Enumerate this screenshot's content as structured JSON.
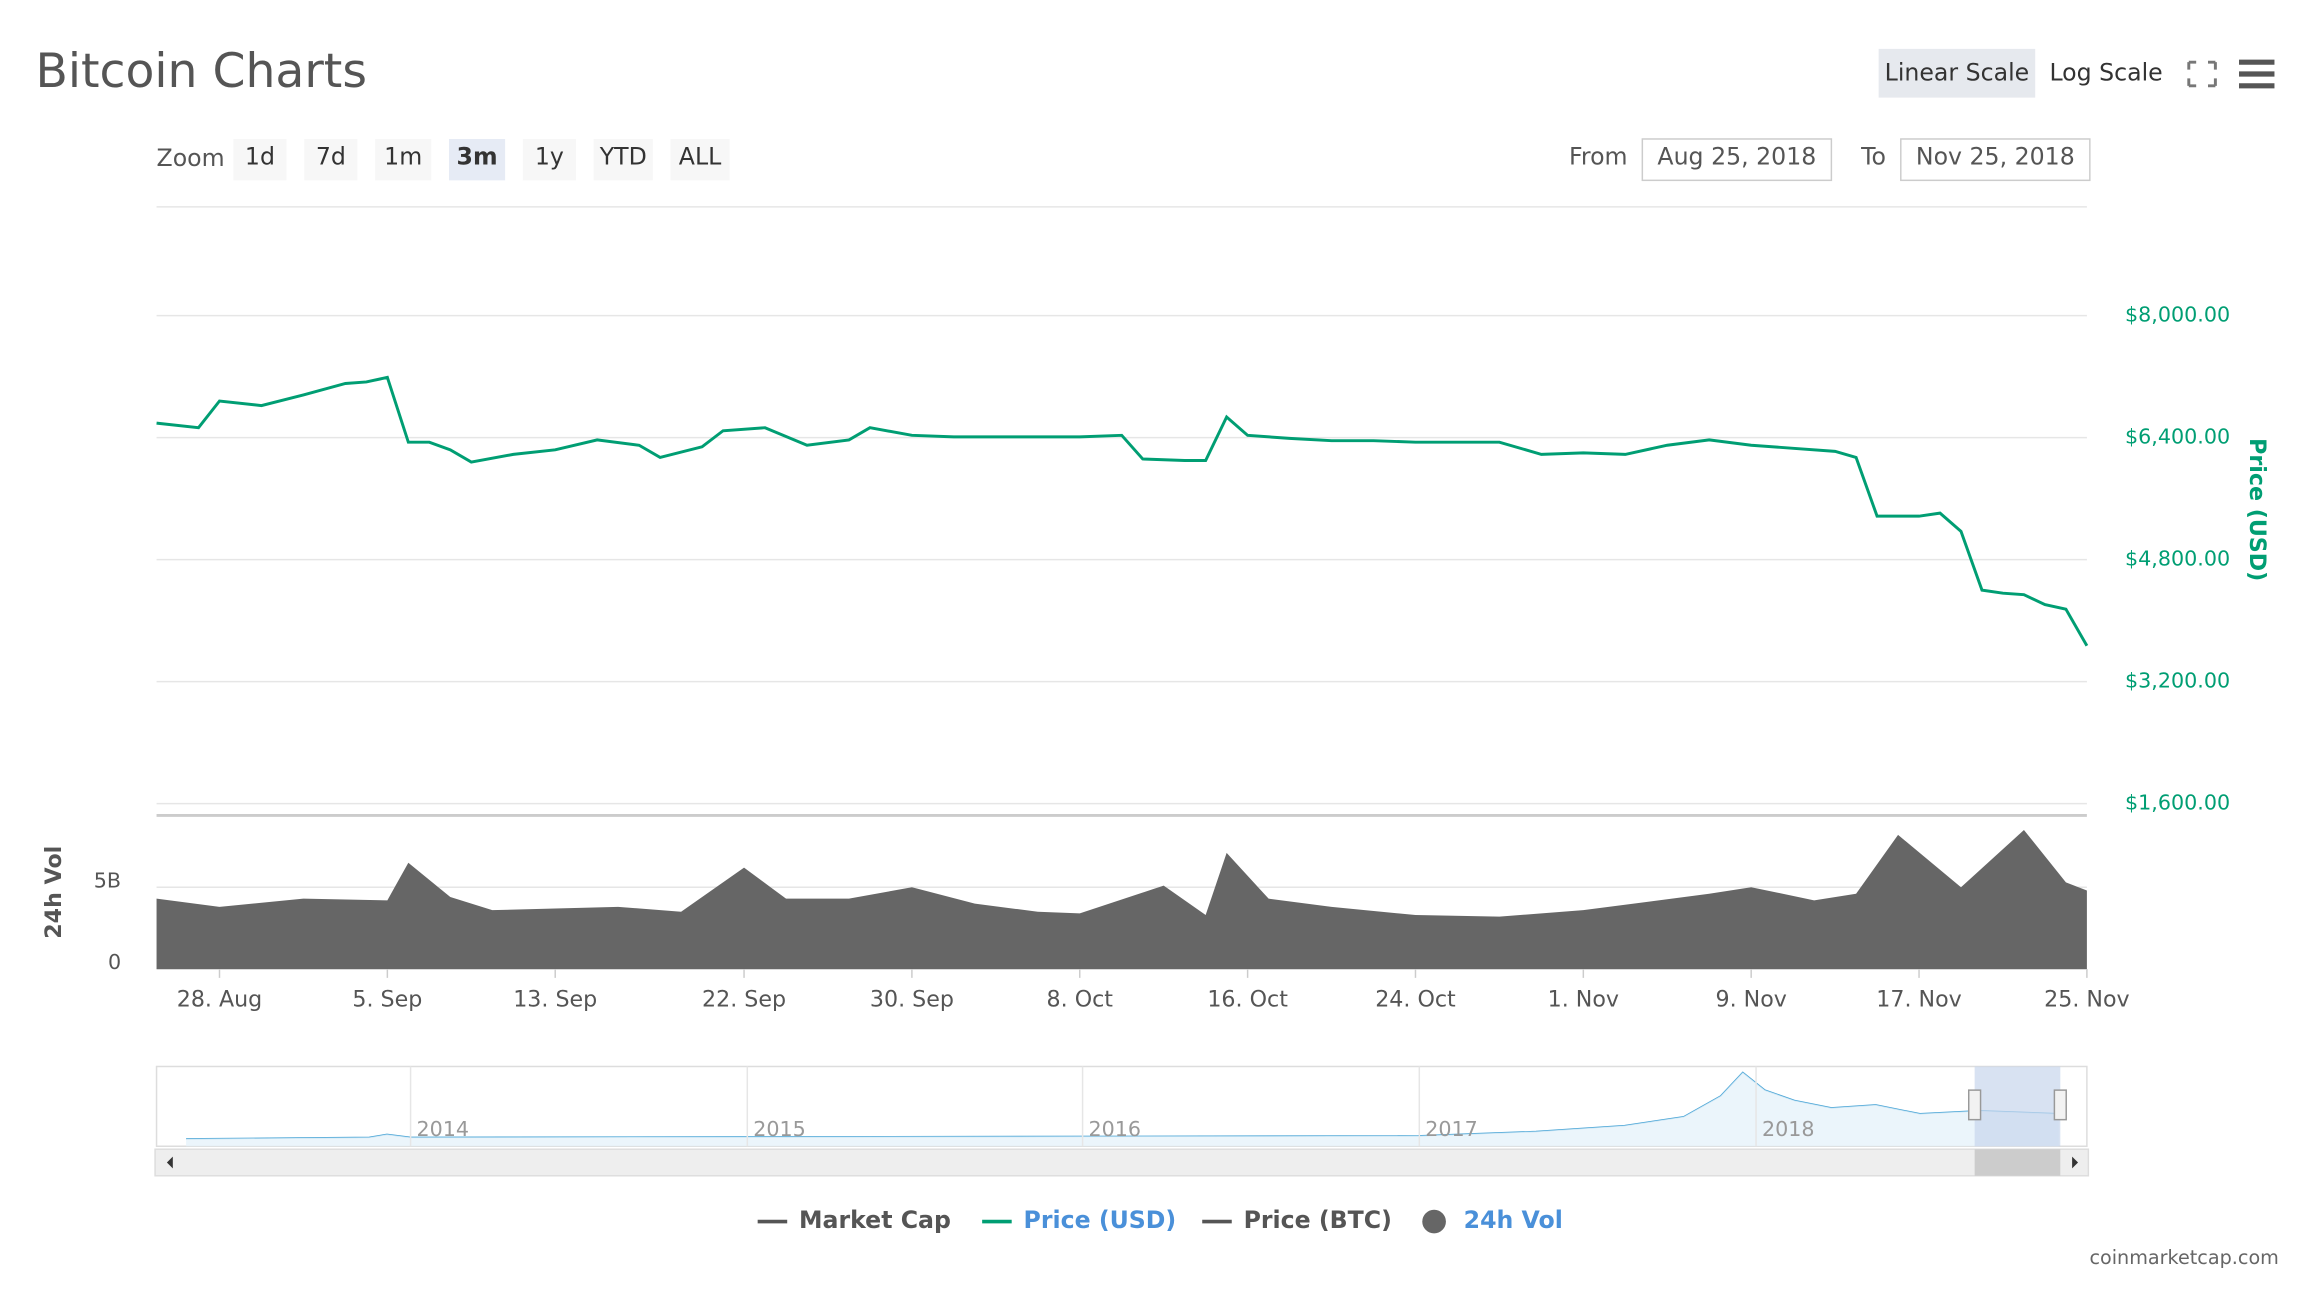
{
  "ui": {
    "title": "Bitcoin Charts",
    "scale_buttons": [
      "Linear Scale",
      "Log Scale"
    ],
    "zoom_label": "Zoom",
    "zoom_buttons": [
      "1d",
      "7d",
      "1m",
      "3m",
      "1y",
      "YTD",
      "ALL"
    ],
    "from_label": "From",
    "from_date": "Aug 25, 2018",
    "to_label": "To",
    "to_date": "Nov 25, 2018",
    "navigator_labels": [
      "2014",
      "2015",
      "2016",
      "2017",
      "2018"
    ],
    "credit": "coinmarketcap.com"
  },
  "chart_data": {
    "type": "line",
    "y_label": "Price (USD)",
    "y2_label": "24h Vol",
    "xlim": [
      "2018-08-25",
      "2018-11-25"
    ],
    "xticks": [
      {
        "value": "2018-08-28",
        "label": "28. Aug"
      },
      {
        "value": "2018-09-05",
        "label": "5. Sep"
      },
      {
        "value": "2018-09-13",
        "label": "13. Sep"
      },
      {
        "value": "2018-09-22",
        "label": "22. Sep"
      },
      {
        "value": "2018-09-30",
        "label": "30. Sep"
      },
      {
        "value": "2018-10-08",
        "label": "8. Oct"
      },
      {
        "value": "2018-10-16",
        "label": "16. Oct"
      },
      {
        "value": "2018-10-24",
        "label": "24. Oct"
      },
      {
        "value": "2018-11-01",
        "label": "1. Nov"
      },
      {
        "value": "2018-11-09",
        "label": "9. Nov"
      },
      {
        "value": "2018-11-17",
        "label": "17. Nov"
      },
      {
        "value": "2018-11-25",
        "label": "25. Nov"
      }
    ],
    "ylim": [
      1600,
      9600
    ],
    "yticks": [
      {
        "value": 1600,
        "label": "$1,600.00"
      },
      {
        "value": 3200,
        "label": "$3,200.00"
      },
      {
        "value": 4800,
        "label": "$4,800.00"
      },
      {
        "value": 6400,
        "label": "$6,400.00"
      },
      {
        "value": 8000,
        "label": "$8,000.00"
      }
    ],
    "y2lim": [
      0,
      9300000000
    ],
    "y2ticks": [
      0,
      {
        "value": 5000000000,
        "label": "5B"
      }
    ],
    "grid": true,
    "series": [
      {
        "name": "Price (USD)",
        "color": "#009e73",
        "x": [
          "2018-08-25",
          "2018-08-27",
          "2018-08-28",
          "2018-08-30",
          "2018-09-01",
          "2018-09-03",
          "2018-09-04",
          "2018-09-05",
          "2018-09-06",
          "2018-09-07",
          "2018-09-08",
          "2018-09-09",
          "2018-09-11",
          "2018-09-13",
          "2018-09-15",
          "2018-09-17",
          "2018-09-18",
          "2018-09-20",
          "2018-09-21",
          "2018-09-23",
          "2018-09-25",
          "2018-09-27",
          "2018-09-28",
          "2018-09-30",
          "2018-10-02",
          "2018-10-04",
          "2018-10-06",
          "2018-10-08",
          "2018-10-10",
          "2018-10-11",
          "2018-10-13",
          "2018-10-14",
          "2018-10-15",
          "2018-10-16",
          "2018-10-18",
          "2018-10-20",
          "2018-10-22",
          "2018-10-24",
          "2018-10-26",
          "2018-10-28",
          "2018-10-30",
          "2018-11-01",
          "2018-11-03",
          "2018-11-05",
          "2018-11-07",
          "2018-11-09",
          "2018-11-11",
          "2018-11-13",
          "2018-11-14",
          "2018-11-15",
          "2018-11-17",
          "2018-11-18",
          "2018-11-19",
          "2018-11-20",
          "2018-11-21",
          "2018-11-22",
          "2018-11-23",
          "2018-11-24",
          "2018-11-25"
        ],
        "values": [
          6590,
          6530,
          6880,
          6820,
          6960,
          7110,
          7130,
          7190,
          6340,
          6340,
          6240,
          6080,
          6180,
          6240,
          6370,
          6300,
          6140,
          6280,
          6490,
          6530,
          6300,
          6370,
          6530,
          6430,
          6410,
          6410,
          6410,
          6410,
          6430,
          6120,
          6100,
          6100,
          6670,
          6430,
          6390,
          6360,
          6360,
          6340,
          6340,
          6340,
          6180,
          6200,
          6180,
          6300,
          6370,
          6300,
          6260,
          6220,
          6140,
          5370,
          5370,
          5410,
          5170,
          4400,
          4360,
          4340,
          4210,
          4150,
          3670
        ]
      },
      {
        "name": "24h Vol",
        "color": "#666666",
        "axis": "y2",
        "x": [
          "2018-08-25",
          "2018-08-28",
          "2018-09-01",
          "2018-09-05",
          "2018-09-06",
          "2018-09-08",
          "2018-09-10",
          "2018-09-13",
          "2018-09-16",
          "2018-09-19",
          "2018-09-22",
          "2018-09-24",
          "2018-09-27",
          "2018-09-30",
          "2018-10-03",
          "2018-10-06",
          "2018-10-08",
          "2018-10-12",
          "2018-10-14",
          "2018-10-15",
          "2018-10-17",
          "2018-10-20",
          "2018-10-24",
          "2018-10-28",
          "2018-11-01",
          "2018-11-04",
          "2018-11-07",
          "2018-11-09",
          "2018-11-12",
          "2018-11-14",
          "2018-11-16",
          "2018-11-19",
          "2018-11-22",
          "2018-11-24",
          "2018-11-25"
        ],
        "values": [
          4300000000,
          3800000000,
          4300000000,
          4200000000,
          6500000000,
          4400000000,
          3600000000,
          3700000000,
          3800000000,
          3500000000,
          6200000000,
          4300000000,
          4300000000,
          5000000000,
          4000000000,
          3500000000,
          3400000000,
          5100000000,
          3300000000,
          7100000000,
          4300000000,
          3800000000,
          3300000000,
          3200000000,
          3600000000,
          4100000000,
          4600000000,
          5000000000,
          4200000000,
          4600000000,
          8200000000,
          5000000000,
          8500000000,
          5300000000,
          4800000000
        ]
      }
    ],
    "legend": [
      {
        "name": "Market Cap",
        "color": "#555555"
      },
      {
        "name": "Price (USD)",
        "color": "#009e73"
      },
      {
        "name": "Price (BTC)",
        "color": "#555555"
      },
      {
        "name": "24h Vol",
        "color": "#666666"
      }
    ],
    "legend_position": "bottom"
  }
}
